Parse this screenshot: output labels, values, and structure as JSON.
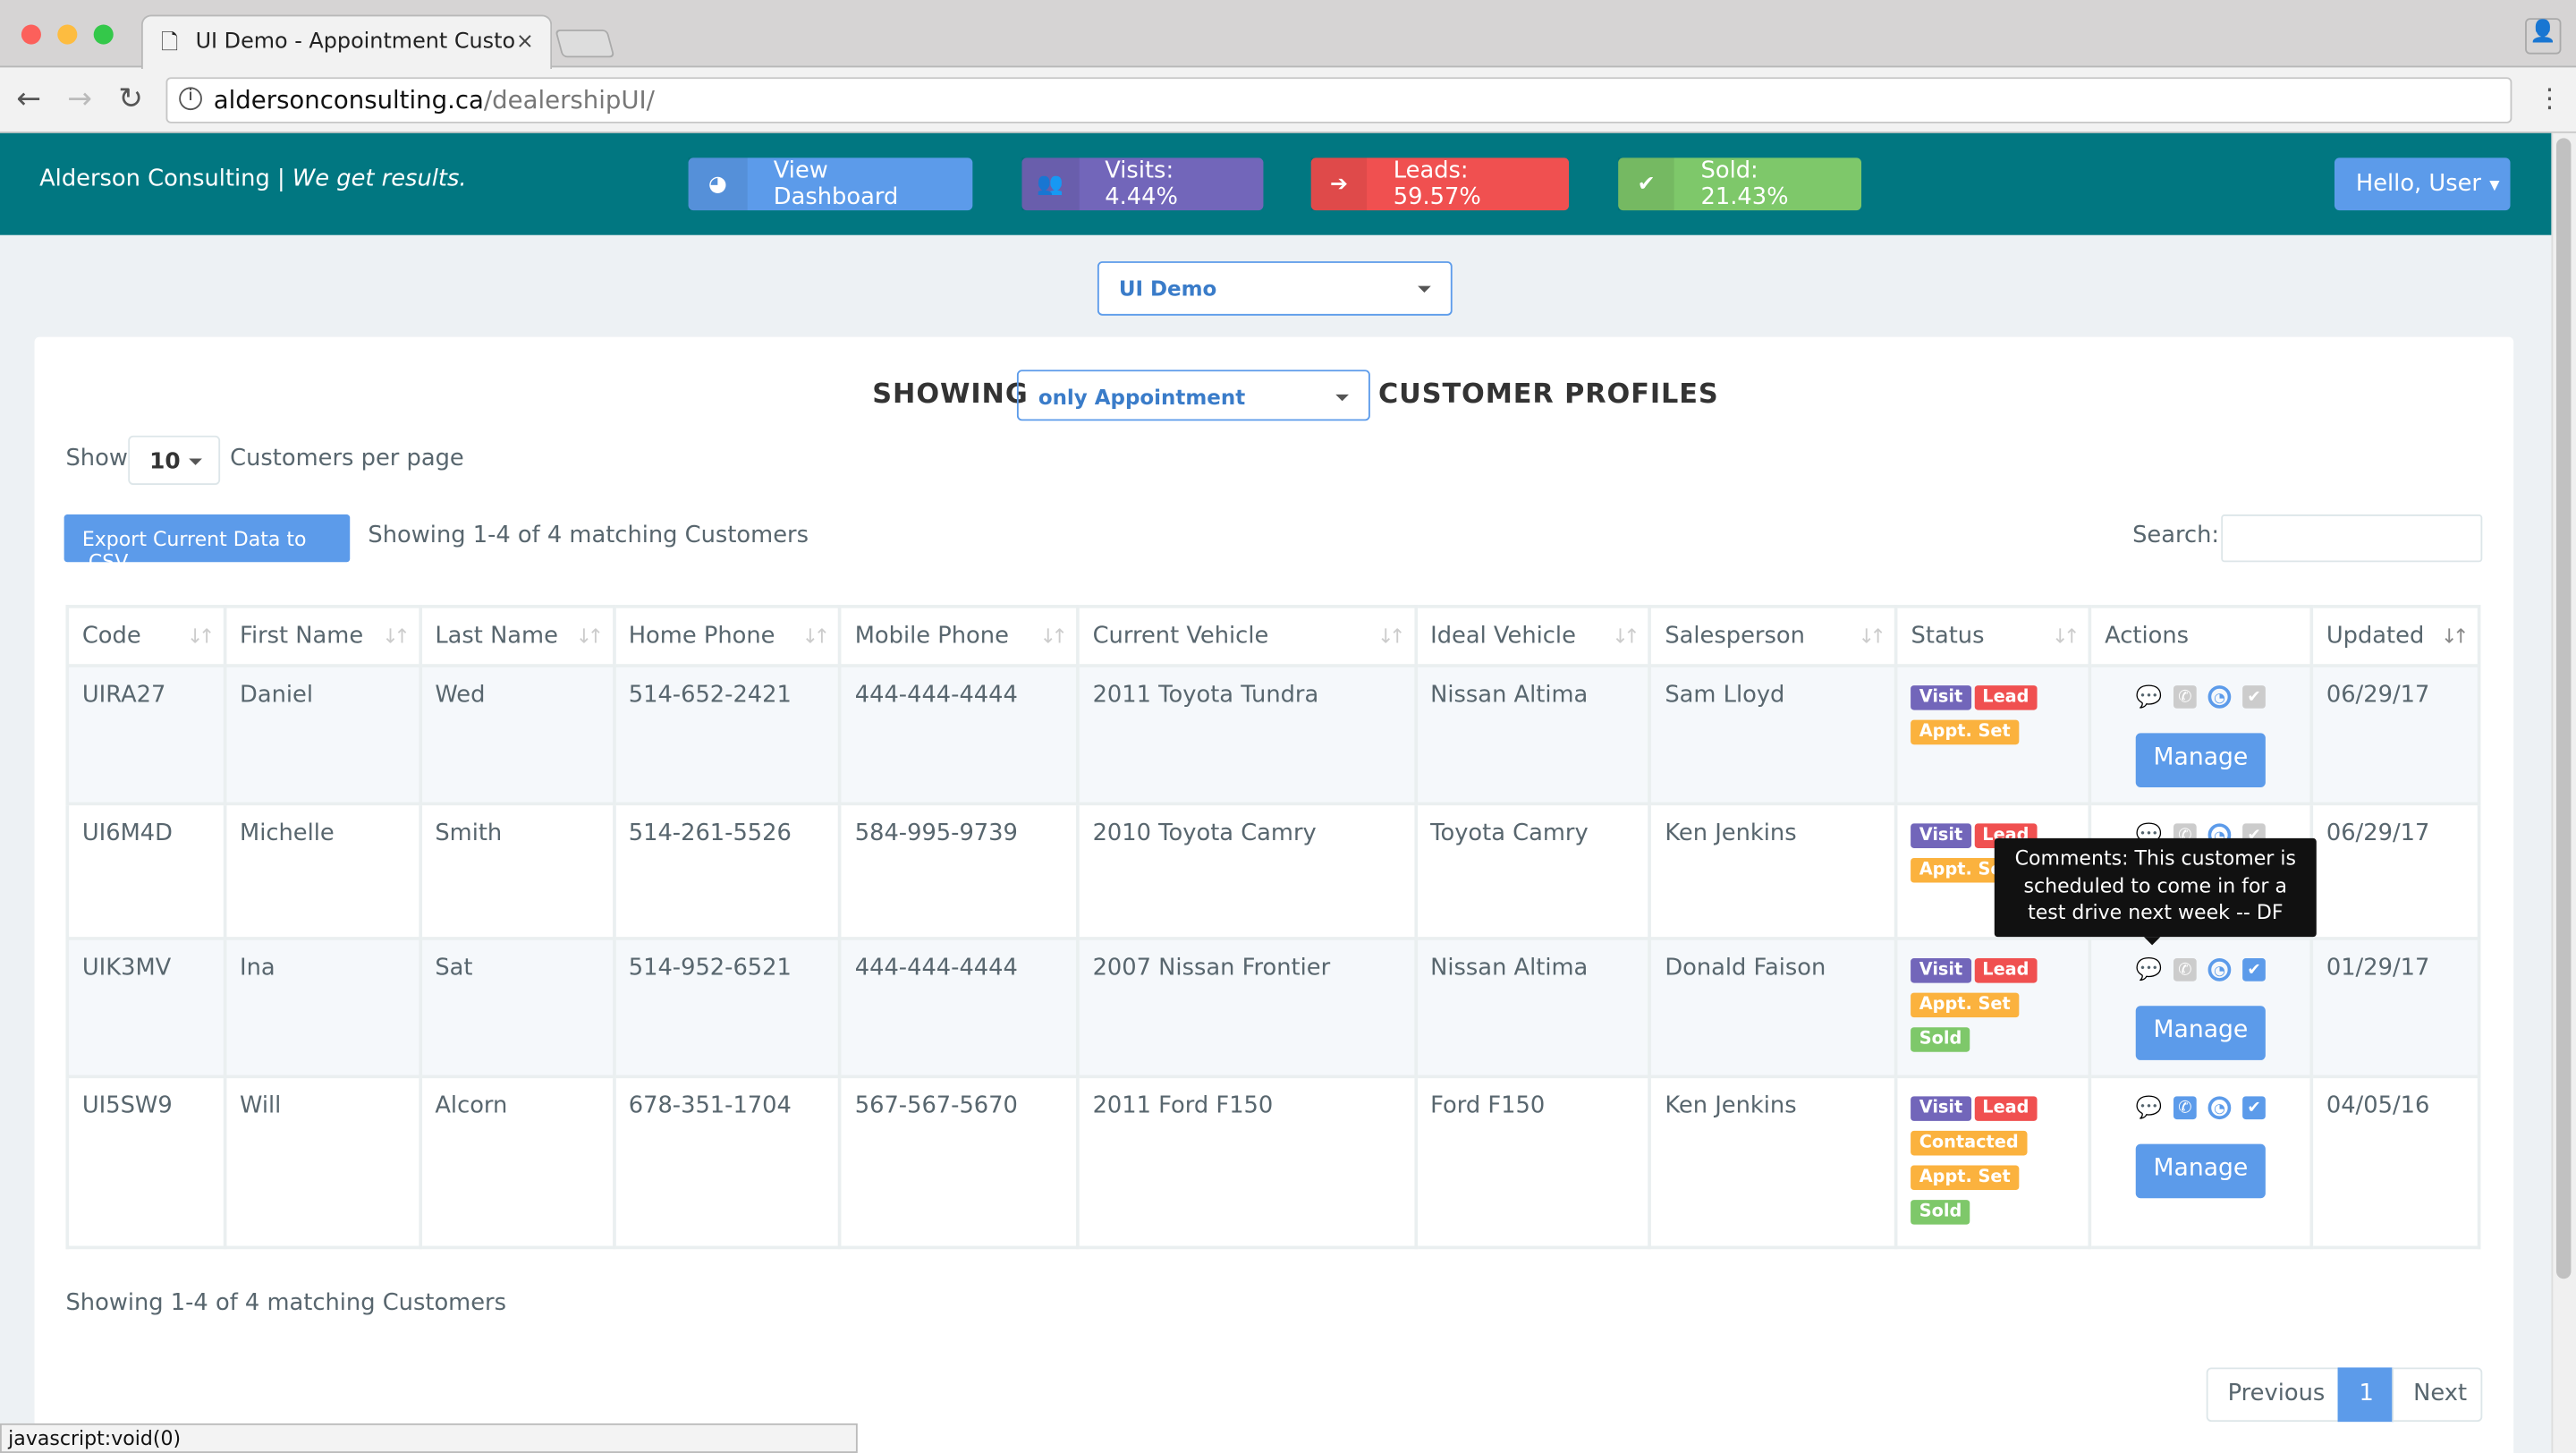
{
  "browser": {
    "tab_title": "UI Demo - Appointment Custo",
    "url_host": "aldersonconsulting.ca",
    "url_path": "/dealershipUI/",
    "status_bar": "javascript:void(0)"
  },
  "header": {
    "brand": "Alderson Consulting",
    "tagline": "We get results.",
    "dashboard": "View Dashboard",
    "visits": "Visits: 4.44%",
    "leads": "Leads: 59.57%",
    "sold": "Sold: 21.43%",
    "user": "Hello, User"
  },
  "dealer_select": "UI Demo",
  "main": {
    "showing": "SHOWING",
    "filter": "only Appointment",
    "profiles": "CUSTOMER PROFILES",
    "show": "Show",
    "per_page": "10",
    "per_page_label": "Customers per page",
    "export": "Export Current Data to .CSV",
    "count": "Showing 1-4 of 4 matching Customers",
    "search_label": "Search:",
    "search_value": "",
    "footer_count": "Showing 1-4 of 4 matching Customers"
  },
  "table": {
    "columns": [
      "Code",
      "First Name",
      "Last Name",
      "Home Phone",
      "Mobile Phone",
      "Current Vehicle",
      "Ideal Vehicle",
      "Salesperson",
      "Status",
      "Actions",
      "Updated"
    ],
    "rows": [
      {
        "code": "UIRA27",
        "first": "Daniel",
        "last": "Wed",
        "home": "514-652-2421",
        "mobile": "444-444-4444",
        "current": "2011 Toyota Tundra",
        "ideal": "Nissan Altima",
        "sales": "Sam Lloyd",
        "status": [
          "Visit",
          "Lead",
          "Appt. Set"
        ],
        "icons": {
          "comment": false,
          "phone": false,
          "clock": true,
          "check": false
        },
        "manage": "Manage",
        "updated": "06/29/17"
      },
      {
        "code": "UI6M4D",
        "first": "Michelle",
        "last": "Smith",
        "home": "514-261-5526",
        "mobile": "584-995-9739",
        "current": "2010 Toyota Camry",
        "ideal": "Toyota Camry",
        "sales": "Ken Jenkins",
        "status": [
          "Visit",
          "Lead",
          "Appt. Set"
        ],
        "icons": {
          "comment": false,
          "phone": false,
          "clock": true,
          "check": false
        },
        "manage": "Manage",
        "updated": "06/29/17"
      },
      {
        "code": "UIK3MV",
        "first": "Ina",
        "last": "Sat",
        "home": "514-952-6521",
        "mobile": "444-444-4444",
        "current": "2007 Nissan Frontier",
        "ideal": "Nissan Altima",
        "sales": "Donald Faison",
        "status": [
          "Visit",
          "Lead",
          "Appt. Set",
          "Sold"
        ],
        "icons": {
          "comment": true,
          "phone": false,
          "clock": true,
          "check": true
        },
        "manage": "Manage",
        "updated": "01/29/17"
      },
      {
        "code": "UI5SW9",
        "first": "Will",
        "last": "Alcorn",
        "home": "678-351-1704",
        "mobile": "567-567-5670",
        "current": "2011 Ford F150",
        "ideal": "Ford F150",
        "sales": "Ken Jenkins",
        "status": [
          "Visit",
          "Lead",
          "Contacted",
          "Appt. Set",
          "Sold"
        ],
        "icons": {
          "comment": false,
          "phone": true,
          "clock": true,
          "check": true
        },
        "manage": "Manage",
        "updated": "04/05/16"
      }
    ]
  },
  "tooltip": "Comments: This customer is scheduled to come in for a test drive next week -- DF",
  "pagination": {
    "previous": "Previous",
    "current": "1",
    "next": "Next"
  },
  "colors": {
    "header": "#017781",
    "primary": "#5c9bea",
    "visit": "#7266ba",
    "lead": "#f05050",
    "appt": "#fbb23e",
    "sold": "#7ec86a"
  }
}
